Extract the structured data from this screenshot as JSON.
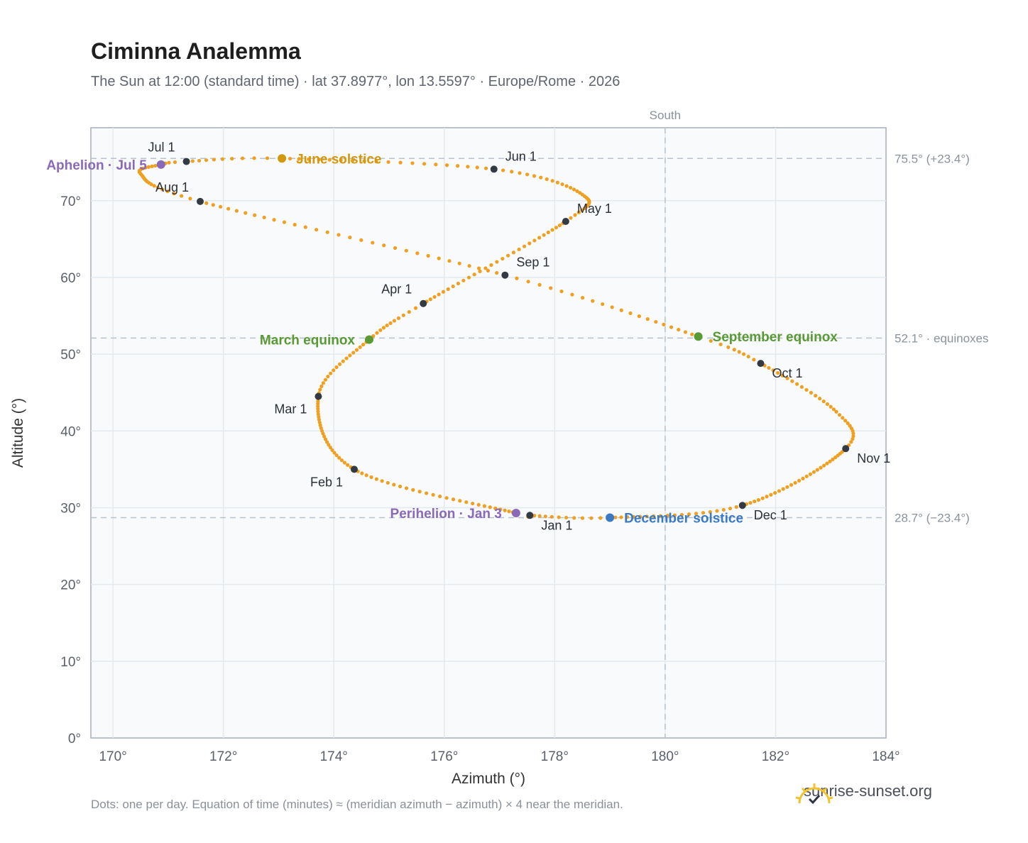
{
  "title": "Ciminna Analemma",
  "subtitle": "The Sun at 12:00 (standard time) · lat 37.8977°, lon 13.5597° · Europe/Rome · 2026",
  "footnote": "Dots: one per day. Equation of time (minutes) ≈ (meridian azimuth − azimuth) × 4 near the meridian.",
  "brand": "sunrise-sunset.org",
  "colors": {
    "curve": "#f0a020",
    "month": "#333a44",
    "solstice_june": "#d4980c",
    "solstice_dec": "#3a7ac4",
    "equinox": "#5a9a35",
    "apsis": "#8a6ab8",
    "grid": "#e4e9ee",
    "plot_bg": "#f8fafc",
    "ref": "#b8c2cc"
  },
  "chart_data": {
    "type": "scatter",
    "title": "Ciminna Analemma",
    "xlabel": "Azimuth (°)",
    "ylabel": "Altitude (°)",
    "xlim": [
      169.6,
      184
    ],
    "ylim": [
      0,
      79.5
    ],
    "x_ticks": [
      170,
      172,
      174,
      176,
      178,
      180,
      182,
      184
    ],
    "y_ticks": [
      0,
      10,
      20,
      30,
      40,
      50,
      60,
      70
    ],
    "x_tick_labels": [
      "170°",
      "172°",
      "174°",
      "176°",
      "178°",
      "180°",
      "182°",
      "184°"
    ],
    "y_tick_labels": [
      "0°",
      "10°",
      "20°",
      "30°",
      "40°",
      "50°",
      "60°",
      "70°"
    ],
    "grid": true,
    "meridian": {
      "x": 180,
      "label": "South"
    },
    "reference_lines": [
      {
        "y": 75.5,
        "label": "75.5° (+23.4°)"
      },
      {
        "y": 52.1,
        "label": "52.1° · equinoxes"
      },
      {
        "y": 28.7,
        "label": "28.7° (−23.4°)"
      }
    ],
    "anchors": [
      {
        "day": 1,
        "az": 177.55,
        "alt": 29.0
      },
      {
        "day": 3,
        "az": 177.3,
        "alt": 29.3
      },
      {
        "day": 32,
        "az": 174.37,
        "alt": 35.0
      },
      {
        "day": 60,
        "az": 173.72,
        "alt": 44.5
      },
      {
        "day": 79,
        "az": 174.64,
        "alt": 51.9
      },
      {
        "day": 91,
        "az": 175.62,
        "alt": 56.6
      },
      {
        "day": 121,
        "az": 178.2,
        "alt": 67.3
      },
      {
        "day": 136,
        "az": 178.5,
        "alt": 70.8
      },
      {
        "day": 152,
        "az": 176.9,
        "alt": 74.1
      },
      {
        "day": 172,
        "az": 173.06,
        "alt": 75.5
      },
      {
        "day": 182,
        "az": 171.33,
        "alt": 75.1
      },
      {
        "day": 186,
        "az": 170.87,
        "alt": 74.7
      },
      {
        "day": 196,
        "az": 170.5,
        "alt": 73.5
      },
      {
        "day": 213,
        "az": 171.58,
        "alt": 69.9
      },
      {
        "day": 244,
        "az": 177.1,
        "alt": 60.3
      },
      {
        "day": 265,
        "az": 180.6,
        "alt": 52.3
      },
      {
        "day": 274,
        "az": 181.73,
        "alt": 48.8
      },
      {
        "day": 292,
        "az": 183.1,
        "alt": 42.5
      },
      {
        "day": 305,
        "az": 183.27,
        "alt": 37.7
      },
      {
        "day": 335,
        "az": 181.4,
        "alt": 30.3
      },
      {
        "day": 355,
        "az": 179.0,
        "alt": 28.7
      },
      {
        "day": 366,
        "az": 177.55,
        "alt": 29.0
      }
    ],
    "month_markers": [
      {
        "label": "Jan 1",
        "az": 177.55,
        "alt": 29.0,
        "pos": "below-right"
      },
      {
        "label": "Feb 1",
        "az": 174.37,
        "alt": 35.0,
        "pos": "below-left"
      },
      {
        "label": "Mar 1",
        "az": 173.72,
        "alt": 44.5,
        "pos": "below-left"
      },
      {
        "label": "Apr 1",
        "az": 175.62,
        "alt": 56.6,
        "pos": "above-left"
      },
      {
        "label": "May 1",
        "az": 178.2,
        "alt": 67.3,
        "pos": "above-right"
      },
      {
        "label": "Jun 1",
        "az": 176.9,
        "alt": 74.1,
        "pos": "above-right"
      },
      {
        "label": "Jul 1",
        "az": 171.33,
        "alt": 75.1,
        "pos": "above-left"
      },
      {
        "label": "Aug 1",
        "az": 171.58,
        "alt": 69.9,
        "pos": "above-left"
      },
      {
        "label": "Sep 1",
        "az": 177.1,
        "alt": 60.3,
        "pos": "above-right"
      },
      {
        "label": "Oct 1",
        "az": 181.73,
        "alt": 48.8,
        "pos": "below-right"
      },
      {
        "label": "Nov 1",
        "az": 183.27,
        "alt": 37.7,
        "pos": "below-right"
      },
      {
        "label": "Dec 1",
        "az": 181.4,
        "alt": 30.3,
        "pos": "below-right"
      }
    ],
    "events": [
      {
        "label": "June solstice",
        "az": 173.06,
        "alt": 75.5,
        "kind": "solstice_june",
        "side": "right"
      },
      {
        "label": "December solstice",
        "az": 179.0,
        "alt": 28.7,
        "kind": "solstice_dec",
        "side": "right"
      },
      {
        "label": "March equinox",
        "az": 174.64,
        "alt": 51.9,
        "kind": "equinox",
        "side": "left"
      },
      {
        "label": "September equinox",
        "az": 180.6,
        "alt": 52.3,
        "kind": "equinox",
        "side": "right"
      },
      {
        "label": "Aphelion · Jul 5",
        "az": 170.87,
        "alt": 74.7,
        "kind": "apsis",
        "side": "left"
      },
      {
        "label": "Perihelion · Jan 3",
        "az": 177.3,
        "alt": 29.3,
        "kind": "apsis",
        "side": "left"
      }
    ]
  }
}
